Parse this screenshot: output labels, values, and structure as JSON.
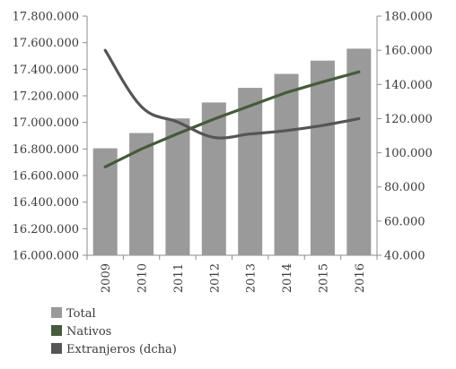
{
  "chart_data": {
    "type": "bar",
    "categories": [
      "2009",
      "2010",
      "2011",
      "2012",
      "2013",
      "2014",
      "2015",
      "2016"
    ],
    "series": [
      {
        "name": "Total",
        "type": "bar",
        "axis": "left",
        "color": "#9a9a9a",
        "values": [
          16805000,
          16920000,
          17030000,
          17150000,
          17260000,
          17365000,
          17465000,
          17555000
        ]
      },
      {
        "name": "Nativos",
        "type": "line",
        "axis": "left",
        "color": "#465a3c",
        "values": [
          16665000,
          16800000,
          16915000,
          17025000,
          17125000,
          17225000,
          17305000,
          17380000
        ]
      },
      {
        "name": "Extranjeros (dcha)",
        "type": "line",
        "axis": "right",
        "color": "#555555",
        "smooth": true,
        "values": [
          160000,
          127000,
          118000,
          109000,
          111000,
          113000,
          116000,
          120000
        ]
      }
    ],
    "y_left": {
      "min": 16000000,
      "max": 17800000,
      "ticks": [
        16000000,
        16200000,
        16400000,
        16600000,
        16800000,
        17000000,
        17200000,
        17400000,
        17600000,
        17800000
      ],
      "tick_labels": [
        "16.000.000",
        "16.200.000",
        "16.400.000",
        "16.600.000",
        "16.800.000",
        "17.000.000",
        "17.200.000",
        "17.400.000",
        "17.600.000",
        "17.800.000"
      ]
    },
    "y_right": {
      "min": 40000,
      "max": 180000,
      "ticks": [
        40000,
        60000,
        80000,
        100000,
        120000,
        140000,
        160000,
        180000
      ],
      "tick_labels": [
        "40.000",
        "60.000",
        "80.000",
        "100.000",
        "120.000",
        "140.000",
        "160.000",
        "180.000"
      ]
    },
    "x_tick_rotation": "vertical",
    "grid": false,
    "legend_position": "bottom-left",
    "title": "",
    "xlabel": "",
    "ylabel": ""
  }
}
